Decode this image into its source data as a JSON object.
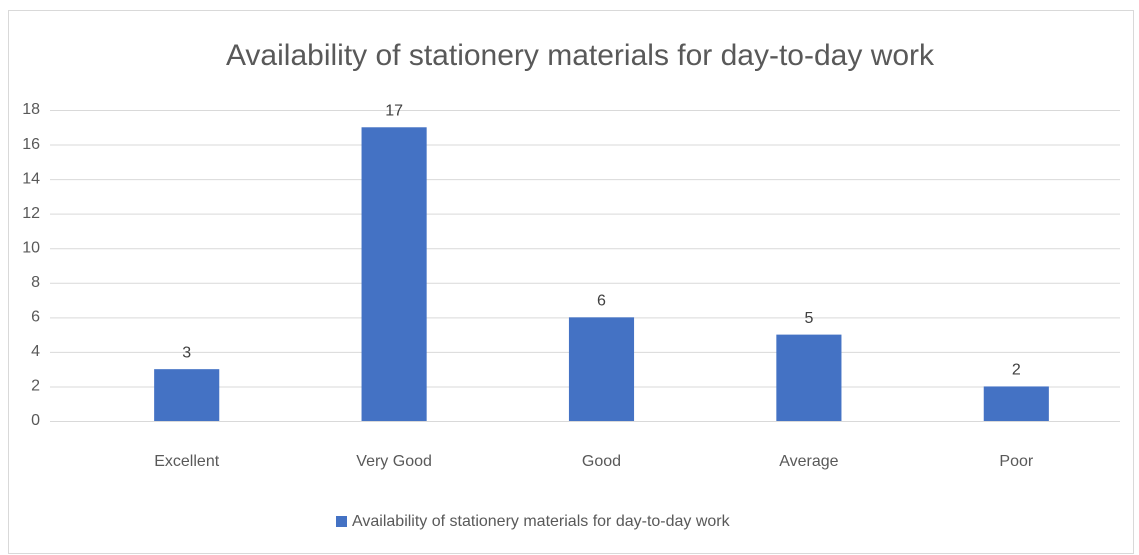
{
  "chart_data": {
    "type": "bar",
    "title": "Availability of stationery materials for day-to-day work",
    "categories": [
      "Excellent",
      "Very Good",
      "Good",
      "Average",
      "Poor"
    ],
    "series": [
      {
        "name": "Availability of stationery materials for day-to-day work",
        "color": "#4472c4",
        "values": [
          3,
          17,
          6,
          5,
          2
        ]
      }
    ],
    "ylim": [
      0,
      18
    ],
    "yticks": [
      0,
      2,
      4,
      6,
      8,
      10,
      12,
      14,
      16,
      18
    ],
    "grid": true,
    "legend": "bottom",
    "data_labels": true
  }
}
